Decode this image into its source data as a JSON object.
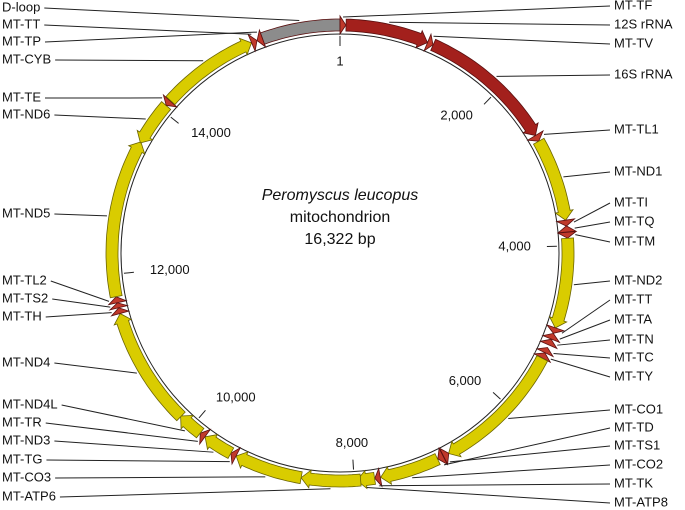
{
  "title": [
    "Peromyscus leucopus",
    "mitochondrion"
  ],
  "length": {
    "value": 16322,
    "label": "16,322 bp"
  },
  "ticks": [
    1,
    {
      "value": 2000,
      "label": "2,000"
    },
    {
      "value": 4000,
      "label": "4,000"
    },
    {
      "value": 6000,
      "label": "6,000"
    },
    {
      "value": 8000,
      "label": "8,000"
    },
    {
      "value": 10000,
      "label": "10,000"
    },
    {
      "value": 12000,
      "label": "12,000"
    },
    {
      "value": 14000,
      "label": "14,000"
    }
  ],
  "colors": {
    "gene": "#d9cc00",
    "rRNA": "#a3201c",
    "tRNA": "#c0392b",
    "D-loop": "#8c8c8c"
  },
  "features": [
    {
      "name": "MT-TF",
      "start": 1,
      "end": 68,
      "strand": 1,
      "kind": "tRNA"
    },
    {
      "name": "12S rRNA",
      "start": 70,
      "end": 1024,
      "strand": 1,
      "kind": "rRNA"
    },
    {
      "name": "MT-TV",
      "start": 1025,
      "end": 1093,
      "strand": 1,
      "kind": "tRNA"
    },
    {
      "name": "16S rRNA",
      "start": 1094,
      "end": 2675,
      "strand": 1,
      "kind": "rRNA"
    },
    {
      "name": "MT-TL1",
      "start": 2676,
      "end": 2750,
      "strand": 1,
      "kind": "tRNA"
    },
    {
      "name": "MT-ND1",
      "start": 2751,
      "end": 3707,
      "strand": 1,
      "kind": "gene"
    },
    {
      "name": "MT-TI",
      "start": 3706,
      "end": 3774,
      "strand": 1,
      "kind": "tRNA"
    },
    {
      "name": "MT-TQ",
      "start": 3772,
      "end": 3842,
      "strand": -1,
      "kind": "tRNA"
    },
    {
      "name": "MT-TM",
      "start": 3845,
      "end": 3913,
      "strand": 1,
      "kind": "tRNA"
    },
    {
      "name": "MT-ND2",
      "start": 3914,
      "end": 4951,
      "strand": 1,
      "kind": "gene"
    },
    {
      "name": "MT-TT",
      "start": 4950,
      "end": 5016,
      "strand": 1,
      "kind": "tRNA"
    },
    {
      "name": "MT-TA",
      "start": 5018,
      "end": 5086,
      "strand": -1,
      "kind": "tRNA"
    },
    {
      "name": "MT-TN",
      "start": 5089,
      "end": 5159,
      "strand": -1,
      "kind": "tRNA"
    },
    {
      "name": "MT-TC",
      "start": 5192,
      "end": 5257,
      "strand": -1,
      "kind": "tRNA"
    },
    {
      "name": "MT-TY",
      "start": 5260,
      "end": 5326,
      "strand": -1,
      "kind": "tRNA"
    },
    {
      "name": "MT-CO1",
      "start": 5328,
      "end": 6872,
      "strand": 1,
      "kind": "gene"
    },
    {
      "name": "MT-TS1",
      "start": 6870,
      "end": 6938,
      "strand": -1,
      "kind": "tRNA"
    },
    {
      "name": "MT-TD",
      "start": 6942,
      "end": 7010,
      "strand": 1,
      "kind": "tRNA"
    },
    {
      "name": "MT-CO2",
      "start": 7013,
      "end": 7696,
      "strand": 1,
      "kind": "gene"
    },
    {
      "name": "MT-TK",
      "start": 7700,
      "end": 7764,
      "strand": 1,
      "kind": "tRNA"
    },
    {
      "name": "MT-ATP8",
      "start": 7766,
      "end": 7969,
      "strand": 1,
      "kind": "gene"
    },
    {
      "name": "MT-ATP6",
      "start": 7927,
      "end": 8607,
      "strand": 1,
      "kind": "gene"
    },
    {
      "name": "MT-CO3",
      "start": 8607,
      "end": 9390,
      "strand": 1,
      "kind": "gene"
    },
    {
      "name": "MT-TG",
      "start": 9391,
      "end": 9458,
      "strand": 1,
      "kind": "tRNA"
    },
    {
      "name": "MT-ND3",
      "start": 9459,
      "end": 9806,
      "strand": 1,
      "kind": "gene"
    },
    {
      "name": "MT-TR",
      "start": 9808,
      "end": 9875,
      "strand": 1,
      "kind": "tRNA"
    },
    {
      "name": "MT-ND4L",
      "start": 9877,
      "end": 10173,
      "strand": 1,
      "kind": "gene"
    },
    {
      "name": "MT-ND4",
      "start": 10167,
      "end": 11544,
      "strand": 1,
      "kind": "gene"
    },
    {
      "name": "MT-TH",
      "start": 11545,
      "end": 11612,
      "strand": 1,
      "kind": "tRNA"
    },
    {
      "name": "MT-TS2",
      "start": 11613,
      "end": 11671,
      "strand": 1,
      "kind": "tRNA"
    },
    {
      "name": "MT-TL2",
      "start": 11671,
      "end": 11741,
      "strand": 1,
      "kind": "tRNA"
    },
    {
      "name": "MT-ND5",
      "start": 11742,
      "end": 13565,
      "strand": 1,
      "kind": "gene"
    },
    {
      "name": "MT-ND6",
      "start": 13552,
      "end": 14070,
      "strand": -1,
      "kind": "gene"
    },
    {
      "name": "MT-TE",
      "start": 14071,
      "end": 14139,
      "strand": -1,
      "kind": "tRNA"
    },
    {
      "name": "MT-CYB",
      "start": 14145,
      "end": 15288,
      "strand": 1,
      "kind": "gene"
    },
    {
      "name": "MT-TT",
      "start": 15289,
      "end": 15355,
      "strand": 1,
      "kind": "tRNA"
    },
    {
      "name": "MT-TP",
      "start": 15356,
      "end": 15422,
      "strand": -1,
      "kind": "tRNA"
    },
    {
      "name": "D-loop",
      "start": 15423,
      "end": 16322,
      "strand": 0,
      "kind": "D-loop"
    }
  ]
}
